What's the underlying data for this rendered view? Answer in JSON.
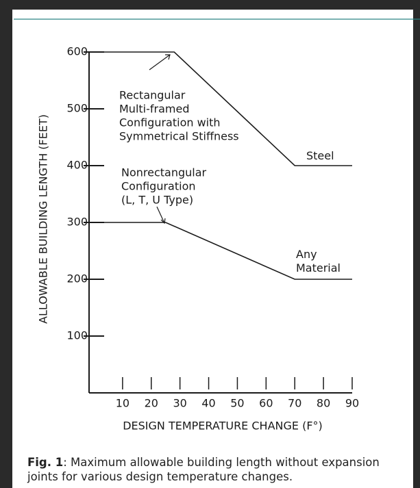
{
  "chart_data": {
    "type": "line",
    "ylabel": "ALLOWABLE BUILDING LENGTH (FEET)",
    "xlabel": "DESIGN TEMPERATURE CHANGE (F°)",
    "xlim": [
      0,
      90
    ],
    "xticks": [
      10,
      20,
      30,
      40,
      50,
      60,
      70,
      80,
      90
    ],
    "ylim": [
      0,
      600
    ],
    "yticks": [
      100,
      200,
      300,
      400,
      500,
      600
    ],
    "series": [
      {
        "name": "Steel",
        "color": "#1a1a1a",
        "x": [
          0,
          28,
          70,
          90
        ],
        "values": [
          600,
          600,
          400,
          400
        ]
      },
      {
        "name": "Any Material",
        "color": "#1a1a1a",
        "x": [
          0,
          25,
          70,
          90
        ],
        "values": [
          300,
          300,
          200,
          200
        ]
      }
    ],
    "annotations": [
      {
        "lines": [
          "Rectangular",
          "Multi-framed",
          "Configuration with",
          "Symmetrical Stiffness"
        ]
      },
      {
        "lines": [
          "Nonrectangular",
          "Configuration",
          "(L, T, U Type)"
        ]
      }
    ]
  },
  "caption": {
    "label": "Fig. 1",
    "text": ": Maximum allowable building length without expansion joints for various design temperature changes."
  }
}
